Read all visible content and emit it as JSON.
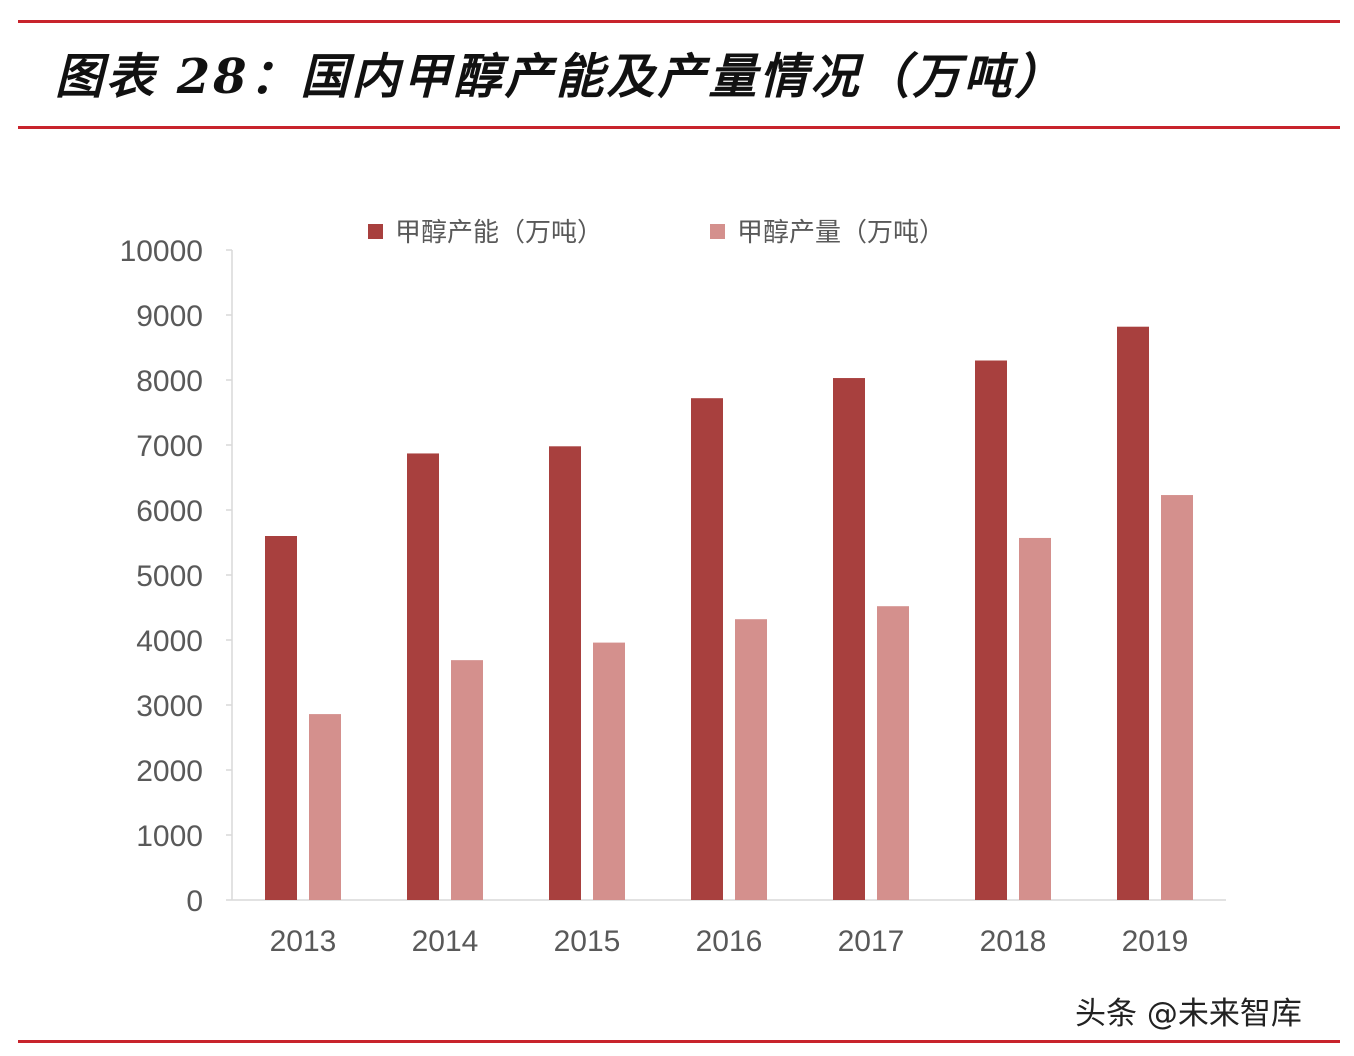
{
  "title": "图表 28：国内甲醇产能及产量情况（万吨）",
  "watermark": "头条 @未来智库",
  "colors": {
    "rule": "#c8232c",
    "capacity": "#a8403e",
    "output": "#d4908d",
    "axis": "#d9d9d9",
    "tick_text": "#595959"
  },
  "chart_data": {
    "type": "bar",
    "categories": [
      "2013",
      "2014",
      "2015",
      "2016",
      "2017",
      "2018",
      "2019"
    ],
    "series": [
      {
        "name": "甲醇产能（万吨）",
        "values": [
          5600,
          6870,
          6980,
          7720,
          8030,
          8300,
          8820
        ]
      },
      {
        "name": "甲醇产量（万吨）",
        "values": [
          2860,
          3690,
          3960,
          4320,
          4520,
          5570,
          6230
        ]
      }
    ],
    "ylim": [
      0,
      10000
    ],
    "yticks": [
      0,
      1000,
      2000,
      3000,
      4000,
      5000,
      6000,
      7000,
      8000,
      9000,
      10000
    ],
    "legend_position": "top",
    "grid": false
  }
}
